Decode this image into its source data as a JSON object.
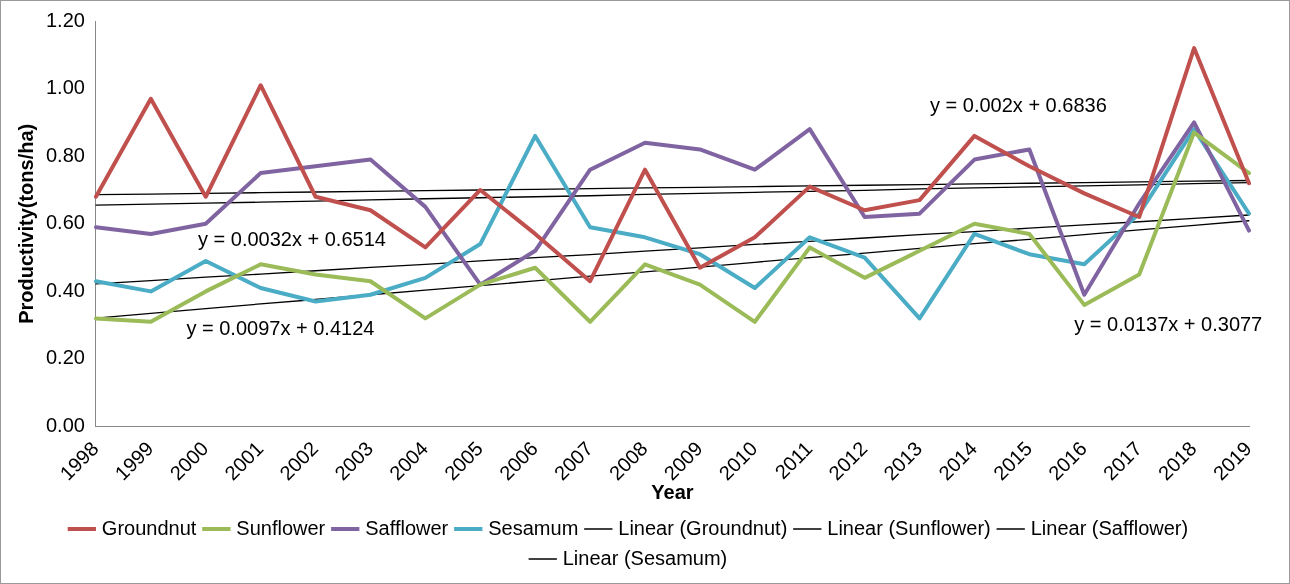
{
  "chart_data": {
    "type": "line",
    "xlabel": "Year",
    "ylabel": "Productivity(tons/ha)",
    "categories": [
      "1998",
      "1999",
      "2000",
      "2001",
      "2002",
      "2003",
      "2004",
      "2005",
      "2006",
      "2007",
      "2008",
      "2009",
      "2010",
      "2011",
      "2012",
      "2013",
      "2014",
      "2015",
      "2016",
      "2017",
      "2018",
      "2019"
    ],
    "series": [
      {
        "name": "Groundnut",
        "color": "#c0504d",
        "values": [
          0.68,
          0.97,
          0.68,
          1.01,
          0.68,
          0.64,
          0.53,
          0.7,
          0.57,
          0.43,
          0.76,
          0.47,
          0.56,
          0.71,
          0.64,
          0.67,
          0.86,
          0.77,
          0.69,
          0.62,
          1.12,
          0.72
        ]
      },
      {
        "name": "Sunflower",
        "color": "#9bbb59",
        "values": [
          0.32,
          0.31,
          0.4,
          0.48,
          0.45,
          0.43,
          0.32,
          0.42,
          0.47,
          0.31,
          0.48,
          0.42,
          0.31,
          0.53,
          0.44,
          0.52,
          0.6,
          0.57,
          0.36,
          0.45,
          0.87,
          0.75
        ]
      },
      {
        "name": "Safflower",
        "color": "#8064a2",
        "values": [
          0.59,
          0.57,
          0.6,
          0.75,
          0.77,
          0.79,
          0.65,
          0.42,
          0.52,
          0.76,
          0.84,
          0.82,
          0.76,
          0.88,
          0.62,
          0.63,
          0.79,
          0.82,
          0.39,
          0.66,
          0.9,
          0.58
        ]
      },
      {
        "name": "Sesamum",
        "color": "#4bacc6",
        "values": [
          0.43,
          0.4,
          0.49,
          0.41,
          0.37,
          0.39,
          0.44,
          0.54,
          0.86,
          0.59,
          0.56,
          0.51,
          0.41,
          0.56,
          0.5,
          0.32,
          0.57,
          0.51,
          0.48,
          0.63,
          0.88,
          0.63
        ]
      },
      {
        "name": "Linear (Groundnut)",
        "type": "line",
        "color": "#000000",
        "values": [
          0.686,
          0.688,
          0.69,
          0.692,
          0.694,
          0.696,
          0.698,
          0.7,
          0.702,
          0.704,
          0.706,
          0.708,
          0.71,
          0.712,
          0.714,
          0.716,
          0.718,
          0.72,
          0.722,
          0.724,
          0.726,
          0.728
        ]
      },
      {
        "name": "Linear (Sunflower)",
        "type": "line",
        "color": "#000000",
        "values": [
          0.321,
          0.335,
          0.349,
          0.363,
          0.376,
          0.39,
          0.404,
          0.417,
          0.431,
          0.445,
          0.458,
          0.472,
          0.486,
          0.5,
          0.513,
          0.527,
          0.541,
          0.554,
          0.568,
          0.582,
          0.595,
          0.609
        ]
      },
      {
        "name": "Linear (Safflower)",
        "type": "line",
        "color": "#000000",
        "values": [
          0.655,
          0.658,
          0.661,
          0.664,
          0.667,
          0.671,
          0.674,
          0.677,
          0.68,
          0.683,
          0.687,
          0.69,
          0.693,
          0.696,
          0.699,
          0.703,
          0.706,
          0.709,
          0.712,
          0.715,
          0.719,
          0.722
        ]
      },
      {
        "name": "Linear (Sesamum)",
        "type": "line",
        "color": "#000000",
        "values": [
          0.422,
          0.432,
          0.442,
          0.451,
          0.461,
          0.471,
          0.48,
          0.49,
          0.5,
          0.509,
          0.519,
          0.529,
          0.539,
          0.548,
          0.558,
          0.568,
          0.577,
          0.587,
          0.597,
          0.606,
          0.616,
          0.626
        ]
      }
    ],
    "ylim": [
      0,
      1.2
    ],
    "yticks": [
      {
        "value": 0,
        "label": "0.00"
      },
      {
        "value": 0.2,
        "label": "0.20"
      },
      {
        "value": 0.4,
        "label": "0.40"
      },
      {
        "value": 0.6,
        "label": "0.60"
      },
      {
        "value": 0.8,
        "label": "0.80"
      },
      {
        "value": 1.0,
        "label": "1.00"
      },
      {
        "value": 1.2,
        "label": "1.20"
      }
    ],
    "annotations": [
      "y = 0.0032x + 0.6514",
      "y = 0.0097x + 0.4124",
      "y = 0.002x + 0.6836",
      "y = 0.0137x + 0.3077"
    ],
    "grid": false,
    "legend": "bottom",
    "marker": "none",
    "line_style": "solid"
  }
}
